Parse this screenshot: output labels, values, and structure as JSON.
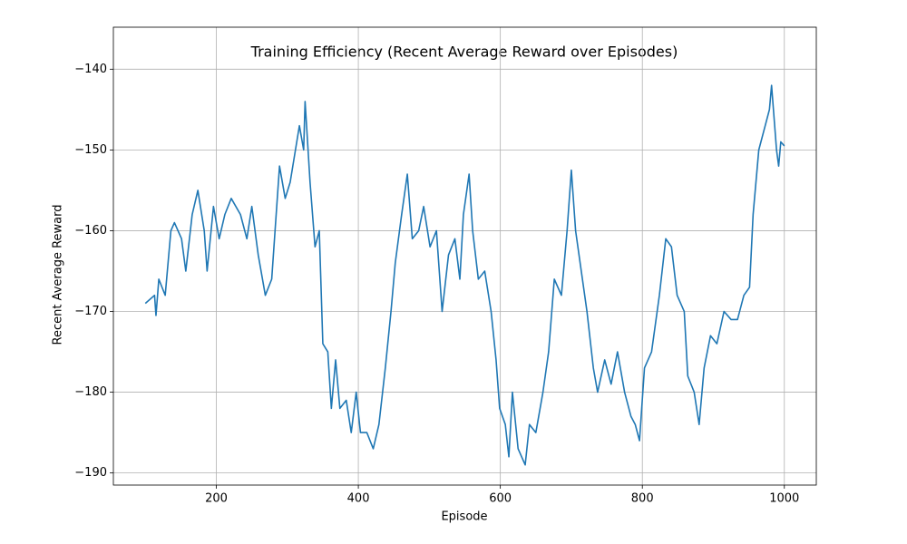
{
  "chart_data": {
    "type": "line",
    "title": "Training Efficiency (Recent Average Reward over Episodes)",
    "x_label": "Episode",
    "y_label": "Recent Average Reward",
    "x": [
      100,
      113,
      115,
      119,
      128,
      136,
      141,
      151,
      157,
      166,
      174,
      183,
      187,
      196,
      204,
      212,
      221,
      234,
      243,
      250,
      259,
      269,
      278,
      289,
      297,
      304,
      317,
      323,
      325,
      332,
      339,
      345,
      350,
      357,
      362,
      368,
      374,
      383,
      390,
      397,
      403,
      412,
      421,
      429,
      438,
      446,
      452,
      461,
      469,
      476,
      485,
      492,
      501,
      510,
      518,
      527,
      536,
      543,
      548,
      556,
      561,
      569,
      578,
      587,
      594,
      599,
      607,
      612,
      617,
      625,
      635,
      641,
      650,
      660,
      668,
      676,
      686,
      694,
      700,
      706,
      714,
      722,
      731,
      737,
      747,
      756,
      765,
      775,
      784,
      790,
      796,
      803,
      813,
      824,
      833,
      841,
      849,
      859,
      864,
      873,
      880,
      887,
      896,
      905,
      915,
      925,
      934,
      943,
      951,
      956,
      964,
      973,
      979,
      982,
      989,
      992,
      995,
      1000
    ],
    "series": [
      {
        "color": "#1f77b4",
        "values": [
          -169,
          -168,
          -170.5,
          -166,
          -168,
          -160,
          -159,
          -161,
          -165,
          -158,
          -155,
          -160,
          -165,
          -157,
          -161,
          -158,
          -156,
          -158,
          -161,
          -157,
          -163,
          -168,
          -166,
          -152,
          -156,
          -154,
          -147,
          -150,
          -144,
          -154,
          -162,
          -160,
          -174,
          -175,
          -182,
          -176,
          -182,
          -181,
          -185,
          -180,
          -185,
          -185,
          -187,
          -184,
          -177,
          -170,
          -164,
          -158,
          -153,
          -161,
          -160,
          -157,
          -162,
          -160,
          -170,
          -163,
          -161,
          -166,
          -158,
          -153,
          -160,
          -166,
          -165,
          -170,
          -176,
          -182,
          -184,
          -188,
          -180,
          -187,
          -189,
          -184,
          -185,
          -180,
          -175,
          -166,
          -168,
          -160,
          -152.5,
          -160,
          -165,
          -170,
          -177,
          -180,
          -176,
          -179,
          -175,
          -180,
          -183,
          -184,
          -186,
          -177,
          -175,
          -168,
          -161,
          -162,
          -168,
          -170,
          -178,
          -180,
          -184,
          -177,
          -173,
          -174,
          -170,
          -171,
          -171,
          -168,
          -167,
          -158,
          -150,
          -147,
          -145,
          -142,
          -150,
          -152,
          -149,
          -149.5
        ]
      }
    ],
    "xlim": [
      55,
      1045
    ],
    "ylim": [
      -191.5,
      -134.8
    ],
    "xticks": [
      200,
      400,
      600,
      800,
      1000
    ],
    "yticks": [
      {
        "value": -140,
        "label": "−140"
      },
      {
        "value": -150,
        "label": "−150"
      },
      {
        "value": -160,
        "label": "−160"
      },
      {
        "value": -170,
        "label": "−170"
      },
      {
        "value": -180,
        "label": "−180"
      },
      {
        "value": -190,
        "label": "−190"
      }
    ],
    "grid": true
  }
}
